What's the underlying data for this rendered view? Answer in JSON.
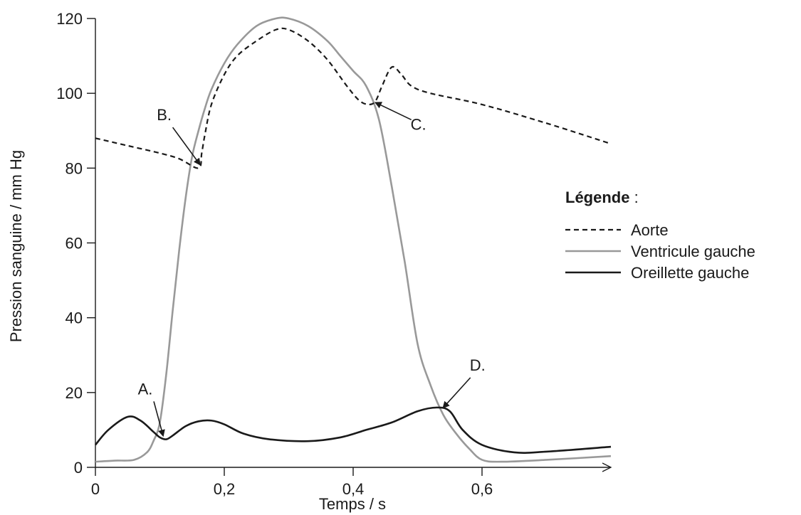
{
  "chart_data": {
    "type": "line",
    "title": "",
    "xlabel": "Temps / s",
    "ylabel": "Pression sanguine / mm Hg",
    "xlim": [
      0,
      0.8
    ],
    "ylim": [
      0,
      120
    ],
    "x_ticks": [
      0,
      0.2,
      0.4,
      0.6
    ],
    "x_tick_labels": [
      "0",
      "0,2",
      "0,4",
      "0,6"
    ],
    "y_ticks": [
      0,
      20,
      40,
      60,
      80,
      100,
      120
    ],
    "y_tick_labels": [
      "0",
      "20",
      "40",
      "60",
      "80",
      "100",
      "120"
    ],
    "grid": false,
    "legend": {
      "title": "Légende",
      "separator": " :",
      "position": "right"
    },
    "series": [
      {
        "name": "Aorte",
        "color": "#1a1a1a",
        "style": "dashed",
        "x": [
          0,
          0.05,
          0.1,
          0.13,
          0.16,
          0.165,
          0.17,
          0.18,
          0.2,
          0.22,
          0.25,
          0.28,
          0.3,
          0.33,
          0.36,
          0.39,
          0.41,
          0.425,
          0.435,
          0.445,
          0.46,
          0.475,
          0.49,
          0.52,
          0.6,
          0.7,
          0.8
        ],
        "values": [
          88,
          86,
          84,
          82.5,
          80,
          84,
          89,
          97,
          105,
          110,
          114,
          117,
          117,
          114,
          109,
          102,
          98,
          97,
          98,
          102,
          107,
          105,
          102,
          100,
          97,
          92,
          86.5
        ]
      },
      {
        "name": "Ventricule gauche",
        "color": "#999999",
        "style": "solid",
        "x": [
          0,
          0.03,
          0.06,
          0.08,
          0.09,
          0.1,
          0.11,
          0.12,
          0.13,
          0.14,
          0.15,
          0.16,
          0.17,
          0.18,
          0.2,
          0.22,
          0.25,
          0.28,
          0.3,
          0.33,
          0.36,
          0.38,
          0.4,
          0.42,
          0.44,
          0.46,
          0.48,
          0.5,
          0.52,
          0.54,
          0.56,
          0.58,
          0.6,
          0.63,
          0.7,
          0.8
        ],
        "values": [
          1.5,
          1.8,
          2,
          4,
          7,
          12,
          25,
          42,
          58,
          72,
          83,
          90,
          96,
          101,
          108,
          113,
          118,
          120,
          120,
          118,
          114,
          110,
          106,
          102,
          93,
          75,
          55,
          33,
          22,
          14,
          9,
          5,
          2,
          1.5,
          2,
          3
        ]
      },
      {
        "name": "Oreillette gauche",
        "color": "#1a1a1a",
        "style": "solid",
        "x": [
          0,
          0.02,
          0.05,
          0.07,
          0.09,
          0.1,
          0.11,
          0.12,
          0.14,
          0.16,
          0.18,
          0.2,
          0.23,
          0.27,
          0.33,
          0.38,
          0.42,
          0.46,
          0.5,
          0.53,
          0.55,
          0.57,
          0.6,
          0.65,
          0.7,
          0.8
        ],
        "values": [
          6,
          10,
          13.5,
          12.5,
          9.5,
          8,
          7.5,
          8.5,
          11,
          12.3,
          12.5,
          11.5,
          9,
          7.5,
          7,
          8,
          10,
          12,
          15,
          16,
          15,
          10,
          6,
          4,
          4.2,
          5.5
        ]
      }
    ],
    "annotations": [
      {
        "label": "A.",
        "target_x": 0.105,
        "target_y": 8.5
      },
      {
        "label": "B.",
        "target_x": 0.162,
        "target_y": 81
      },
      {
        "label": "C.",
        "target_x": 0.435,
        "target_y": 97.5
      },
      {
        "label": "D.",
        "target_x": 0.54,
        "target_y": 16
      }
    ]
  }
}
